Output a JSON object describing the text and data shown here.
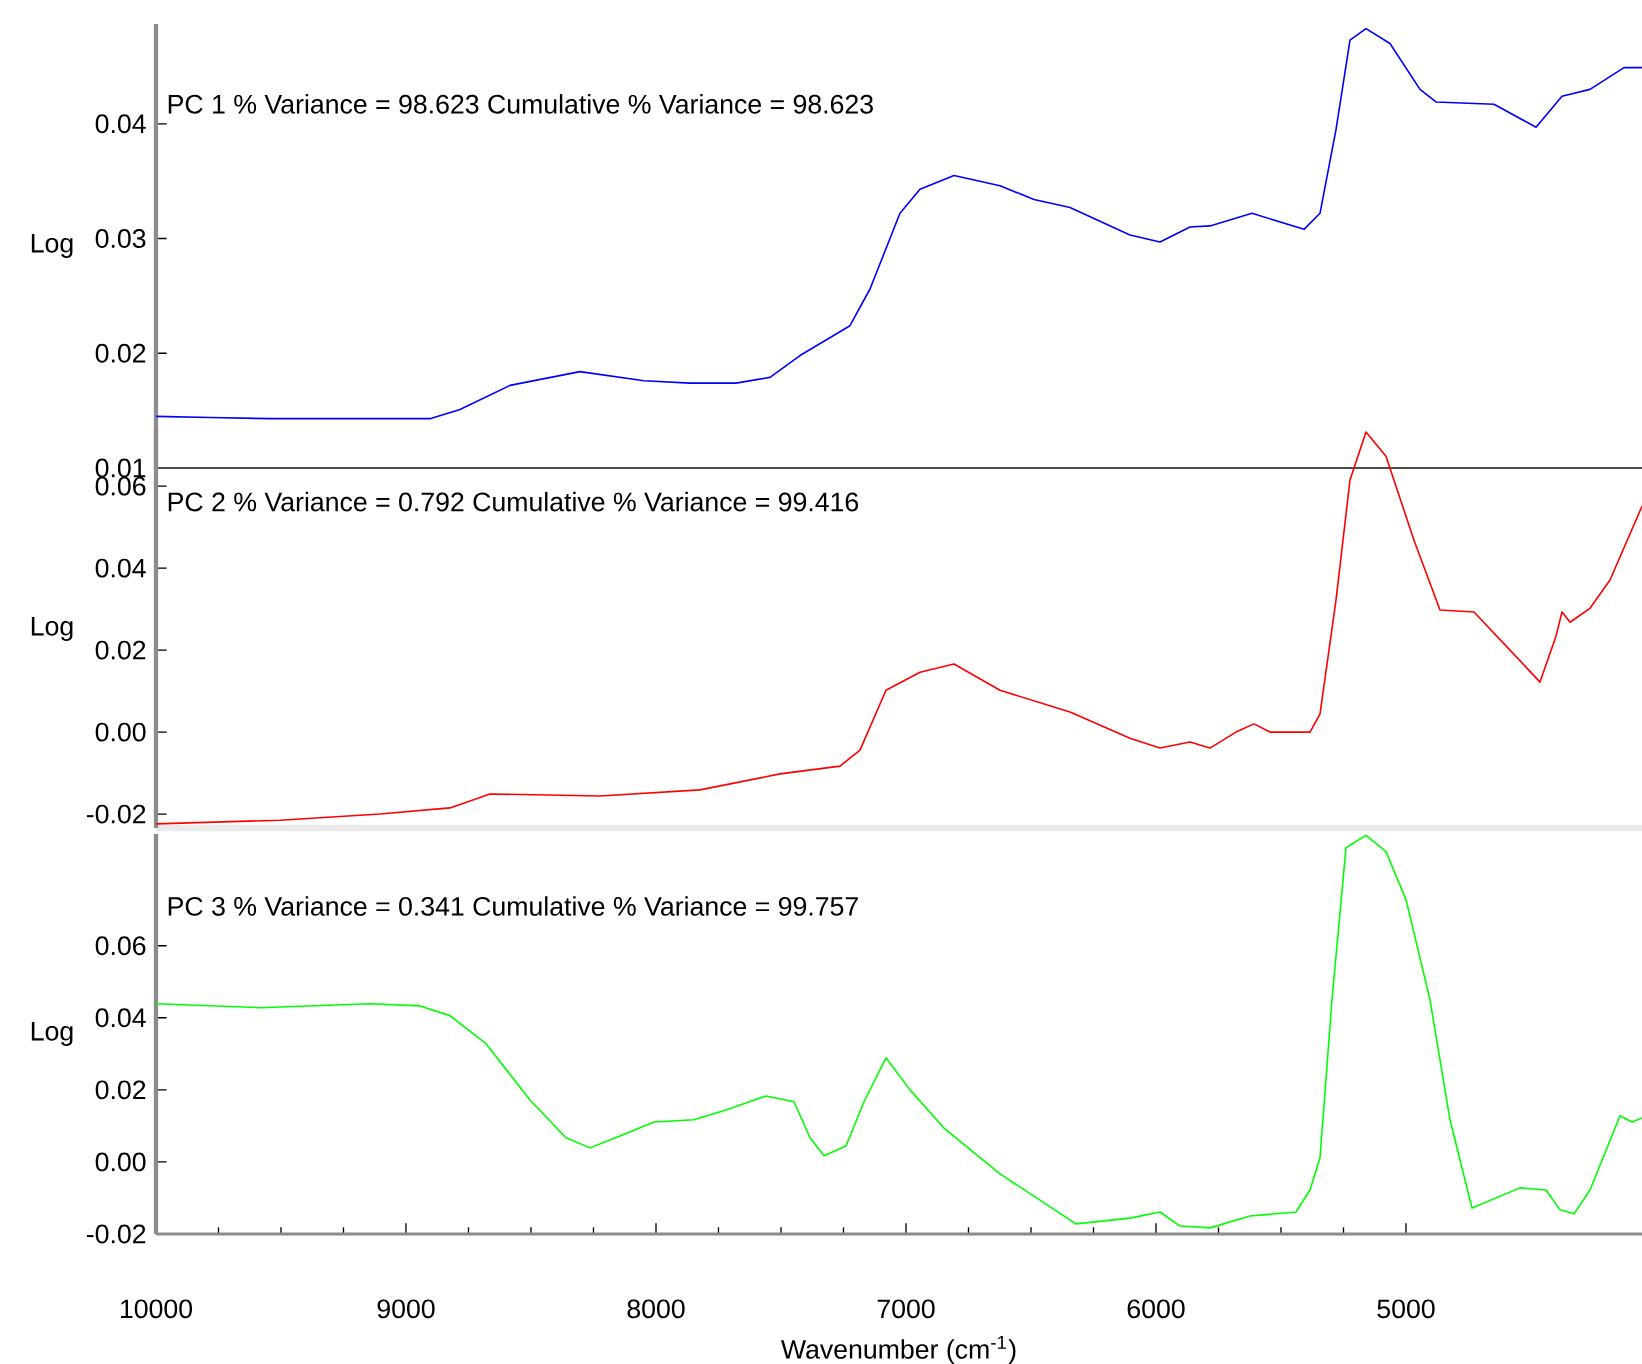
{
  "chart_data": [
    {
      "type": "line",
      "ylabel": "Log",
      "annotations": [
        "PC 1   % Variance =     98.623 Cumulative % Variance =   98.623"
      ],
      "color": "#0000ff",
      "tick_labels": "y",
      "xlim": [
        10000,
        4056
      ],
      "ylim": [
        0.01,
        0.0487
      ],
      "yticks": [
        {
          "value": 0.04,
          "label": "0.04"
        },
        {
          "value": 0.03,
          "label": "0.03"
        },
        {
          "value": 0.02,
          "label": "0.02"
        },
        {
          "value": 0.01,
          "label": "0.01"
        }
      ],
      "x": [
        10000,
        9784,
        9544,
        8904,
        8784,
        8584,
        8304,
        8048,
        7864,
        7680,
        7544,
        7424,
        7224,
        7144,
        7024,
        6944,
        6808,
        6624,
        6488,
        6344,
        6104,
        5984,
        5864,
        5784,
        5616,
        5408,
        5344,
        5280,
        5224,
        5160,
        5064,
        4944,
        4880,
        4648,
        4480,
        4376,
        4264,
        4128,
        4056
      ],
      "values": [
        0.0145,
        0.0144,
        0.0143,
        0.0143,
        0.0151,
        0.0172,
        0.0184,
        0.0176,
        0.0174,
        0.0174,
        0.0179,
        0.0198,
        0.0224,
        0.0256,
        0.0322,
        0.0343,
        0.0355,
        0.0346,
        0.0334,
        0.0327,
        0.0303,
        0.0297,
        0.031,
        0.0311,
        0.0322,
        0.0308,
        0.0322,
        0.0395,
        0.0473,
        0.0483,
        0.047,
        0.043,
        0.0419,
        0.0417,
        0.0397,
        0.0424,
        0.043,
        0.0449,
        0.0449
      ]
    },
    {
      "type": "line",
      "ylabel": "Log",
      "annotations": [
        "PC 2   % Variance =      0.792 Cumulative % Variance =   99.416"
      ],
      "color": "#ff0000",
      "tick_labels": "y",
      "xlim": [
        10000,
        4056
      ],
      "ylim": [
        -0.0234,
        0.0737
      ],
      "yticks": [
        {
          "value": 0.06,
          "label": "0.06"
        },
        {
          "value": 0.04,
          "label": "0.04"
        },
        {
          "value": 0.02,
          "label": "0.02"
        },
        {
          "value": 0,
          "label": "0.00"
        },
        {
          "value": -0.02,
          "label": "-0.02"
        }
      ],
      "x": [
        10000,
        9504,
        9104,
        8824,
        8664,
        8224,
        7824,
        7504,
        7264,
        7184,
        7080,
        6944,
        6808,
        6624,
        6344,
        6104,
        5984,
        5864,
        5784,
        5680,
        5608,
        5544,
        5384,
        5344,
        5280,
        5224,
        5160,
        5080,
        4968,
        4864,
        4728,
        4584,
        4464,
        4400,
        4376,
        4344,
        4264,
        4184,
        4056
      ],
      "values": [
        -0.0224,
        -0.0215,
        -0.02,
        -0.0185,
        -0.0151,
        -0.0156,
        -0.0141,
        -0.0102,
        -0.0083,
        -0.0044,
        0.0102,
        0.0146,
        0.0166,
        0.0102,
        0.0049,
        -0.0015,
        -0.0039,
        -0.0024,
        -0.0039,
        0.0,
        0.002,
        0.0,
        0.0,
        0.0044,
        0.0322,
        0.0615,
        0.0732,
        0.0673,
        0.0468,
        0.0298,
        0.0293,
        0.02,
        0.0122,
        0.0234,
        0.0293,
        0.0268,
        0.0302,
        0.0371,
        0.0551
      ]
    },
    {
      "type": "line",
      "ylabel": "Log",
      "xlabel": "Wavenumber   (cm$^{-1}$)",
      "annotations": [
        "PC 3   % Variance =      0.341 Cumulative % Variance =   99.757"
      ],
      "color": "#00ff00",
      "xlim": [
        10000,
        4056
      ],
      "ylim": [
        -0.02,
        0.091
      ],
      "xticks": [
        10000,
        9000,
        8000,
        7000,
        6000,
        5000
      ],
      "yticks": [
        {
          "value": 0.06,
          "label": "0.06"
        },
        {
          "value": 0.04,
          "label": "0.04"
        },
        {
          "value": 0.02,
          "label": "0.02"
        },
        {
          "value": 0,
          "label": "0.00"
        },
        {
          "value": -0.02,
          "label": "-0.02"
        }
      ],
      "x": [
        10000,
        9584,
        9144,
        8944,
        8824,
        8680,
        8504,
        8360,
        8264,
        8144,
        8008,
        7848,
        7720,
        7560,
        7448,
        7384,
        7328,
        7240,
        7168,
        7080,
        6984,
        6848,
        6624,
        6320,
        6104,
        5984,
        5904,
        5784,
        5624,
        5440,
        5384,
        5344,
        5296,
        5240,
        5160,
        5080,
        5000,
        4904,
        4824,
        4736,
        4544,
        4440,
        4384,
        4328,
        4264,
        4144,
        4096,
        4056
      ],
      "values": [
        0.0439,
        0.0428,
        0.0439,
        0.0433,
        0.0406,
        0.0328,
        0.0172,
        0.0067,
        0.0039,
        0.0072,
        0.0111,
        0.0117,
        0.0144,
        0.0183,
        0.0167,
        0.0067,
        0.0017,
        0.0044,
        0.0167,
        0.0289,
        0.02,
        0.0094,
        -0.0033,
        -0.0172,
        -0.0156,
        -0.0139,
        -0.0178,
        -0.0183,
        -0.015,
        -0.0139,
        -0.0078,
        0.0011,
        0.045,
        0.0872,
        0.0906,
        0.0861,
        0.0728,
        0.045,
        0.0117,
        -0.0128,
        -0.0072,
        -0.0078,
        -0.0133,
        -0.0144,
        -0.0078,
        0.0128,
        0.0111,
        0.0122
      ]
    }
  ]
}
